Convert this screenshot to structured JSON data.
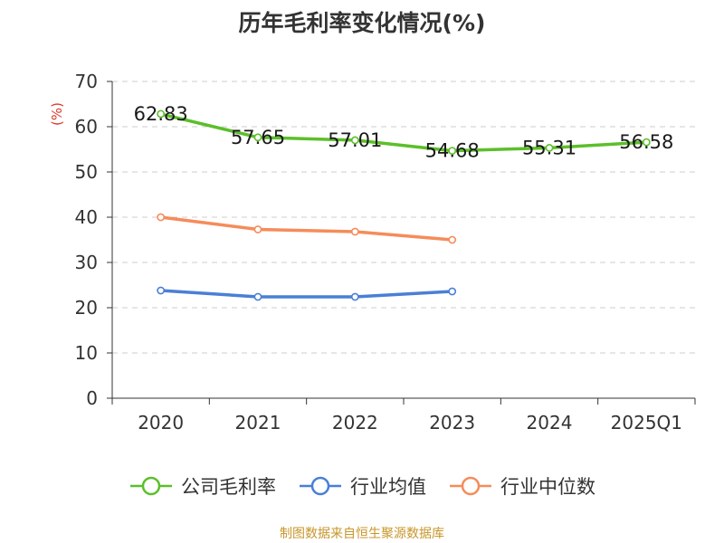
{
  "chart_data": {
    "type": "line",
    "title": "历年毛利率变化情况(%)",
    "ylabel": "(%)",
    "xlabel": "",
    "categories": [
      "2020",
      "2021",
      "2022",
      "2023",
      "2024",
      "2025Q1"
    ],
    "ylim": [
      0,
      70
    ],
    "yticks": [
      0,
      10,
      20,
      30,
      40,
      50,
      60,
      70
    ],
    "grid": true,
    "legend_position": "bottom",
    "series": [
      {
        "name": "公司毛利率",
        "color": "#5cbf2a",
        "values": [
          62.83,
          57.65,
          57.01,
          54.68,
          55.31,
          56.58
        ],
        "labels": [
          "62.83",
          "57.65",
          "57.01",
          "54.68",
          "55.31",
          "56.58"
        ]
      },
      {
        "name": "行业均值",
        "color": "#4a7fd6",
        "values": [
          23.8,
          22.4,
          22.4,
          23.6,
          null,
          null
        ]
      },
      {
        "name": "行业中位数",
        "color": "#f58c5a",
        "values": [
          40.0,
          37.3,
          36.8,
          35.0,
          null,
          null
        ]
      }
    ]
  },
  "source_note": "制图数据来自恒生聚源数据库"
}
